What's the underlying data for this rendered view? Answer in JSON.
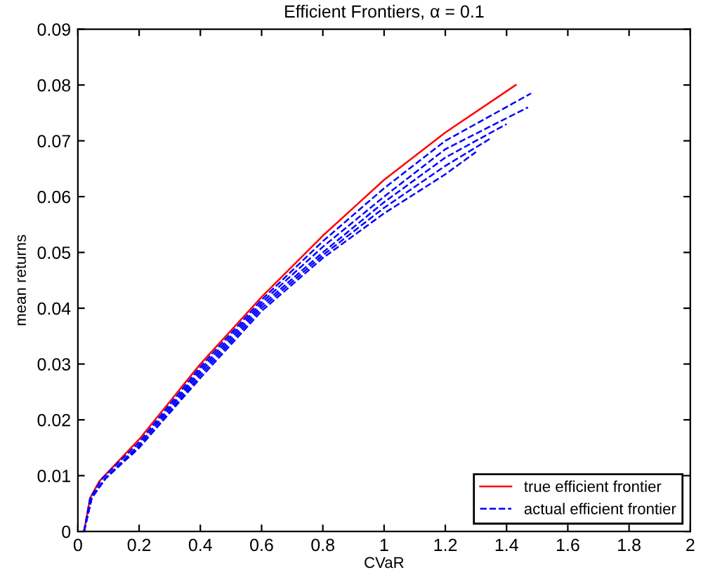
{
  "chart_data": {
    "type": "line",
    "title": "Efficient Frontiers, α = 0.1",
    "xlabel": "CVaR",
    "ylabel": "mean returns",
    "xlim": [
      0,
      2
    ],
    "ylim": [
      0,
      0.09
    ],
    "xticks": [
      0,
      0.2,
      0.4,
      0.6,
      0.8,
      1,
      1.2,
      1.4,
      1.6,
      1.8,
      2
    ],
    "yticks": [
      0,
      0.01,
      0.02,
      0.03,
      0.04,
      0.05,
      0.06,
      0.07,
      0.08,
      0.09
    ],
    "grid": false,
    "legend": "bottom right",
    "series": [
      {
        "name": "true efficient frontier",
        "color": "#ff0000",
        "line_style": "solid",
        "x": [
          0.02,
          0.04,
          0.07,
          0.2,
          0.4,
          0.6,
          0.8,
          1.0,
          1.2,
          1.43
        ],
        "values": [
          0,
          0.006,
          0.009,
          0.0165,
          0.03,
          0.042,
          0.053,
          0.063,
          0.0715,
          0.08
        ]
      },
      {
        "name": "actual efficient frontier",
        "color": "#0000ff",
        "line_style": "dashed",
        "x": [
          0.02,
          0.04,
          0.08,
          0.2,
          0.4,
          0.6,
          0.8,
          1.0,
          1.2,
          1.48
        ],
        "values": [
          0,
          0.006,
          0.0095,
          0.016,
          0.0295,
          0.0415,
          0.052,
          0.0615,
          0.07,
          0.0785
        ]
      },
      {
        "color": "#0000ff",
        "line_style": "dashed",
        "x": [
          0.02,
          0.045,
          0.09,
          0.2,
          0.4,
          0.6,
          0.8,
          1.0,
          1.2,
          1.47
        ],
        "values": [
          0,
          0.006,
          0.0095,
          0.0155,
          0.029,
          0.041,
          0.051,
          0.06,
          0.0685,
          0.076
        ]
      },
      {
        "color": "#0000ff",
        "line_style": "dashed",
        "x": [
          0.02,
          0.045,
          0.09,
          0.2,
          0.4,
          0.6,
          0.8,
          1.0,
          1.2,
          1.4
        ],
        "values": [
          0,
          0.006,
          0.0095,
          0.0155,
          0.0285,
          0.0405,
          0.05,
          0.059,
          0.067,
          0.073
        ]
      },
      {
        "color": "#0000ff",
        "line_style": "dashed",
        "x": [
          0.02,
          0.045,
          0.09,
          0.2,
          0.4,
          0.6,
          0.8,
          1.0,
          1.2,
          1.35
        ],
        "values": [
          0,
          0.006,
          0.0095,
          0.015,
          0.028,
          0.04,
          0.0495,
          0.058,
          0.0655,
          0.0705
        ]
      },
      {
        "color": "#0000ff",
        "line_style": "dashed",
        "x": [
          0.02,
          0.045,
          0.09,
          0.2,
          0.4,
          0.6,
          0.8,
          1.0,
          1.2,
          1.3
        ],
        "values": [
          0,
          0.006,
          0.0095,
          0.015,
          0.0275,
          0.0395,
          0.049,
          0.057,
          0.064,
          0.068
        ]
      }
    ]
  }
}
